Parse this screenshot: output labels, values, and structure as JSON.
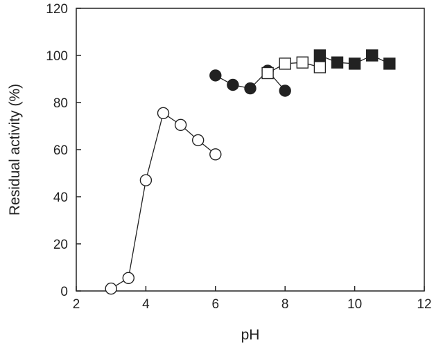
{
  "chart_data": {
    "type": "scatter",
    "xlabel": "pH",
    "ylabel": "Residual activity (%)",
    "xlim": [
      2,
      12
    ],
    "ylim": [
      0,
      120
    ],
    "xticks": [
      2,
      4,
      6,
      8,
      10,
      12
    ],
    "yticks": [
      0,
      20,
      40,
      60,
      80,
      100,
      120
    ],
    "grid": false,
    "series": [
      {
        "marker": "open-circle",
        "connected": true,
        "x": [
          3,
          3.5,
          4,
          4.5,
          5,
          5.5,
          6
        ],
        "y": [
          1,
          5.5,
          47,
          75.5,
          70.5,
          64,
          58
        ]
      },
      {
        "marker": "filled-circle",
        "connected": true,
        "x": [
          6,
          6.5,
          7,
          7.5,
          8
        ],
        "y": [
          91.5,
          87.5,
          86,
          93.5,
          85
        ]
      },
      {
        "marker": "open-square",
        "connected": true,
        "x": [
          7.5,
          8,
          8.5,
          9
        ],
        "y": [
          92.5,
          96.5,
          97,
          95
        ]
      },
      {
        "marker": "filled-square",
        "connected": true,
        "x": [
          9,
          9.5,
          10,
          10.5,
          11
        ],
        "y": [
          100,
          97,
          96.5,
          100,
          96.5
        ]
      }
    ]
  }
}
